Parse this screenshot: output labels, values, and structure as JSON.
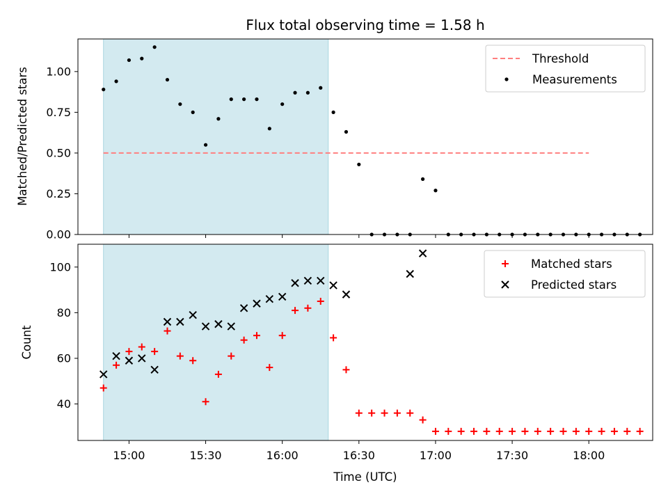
{
  "chart_data": {
    "title": "Flux total observing time = 1.58 h",
    "xlabel": "Time (UTC)",
    "x_ticks": [
      "15:00",
      "15:30",
      "16:00",
      "16:30",
      "17:00",
      "17:30",
      "18:00"
    ],
    "x_range": [
      "14:40",
      "18:25"
    ],
    "highlight_span": [
      "14:50",
      "16:18"
    ],
    "highlight_color": "#d3eaf0",
    "times": [
      "14:50",
      "14:55",
      "15:00",
      "15:05",
      "15:10",
      "15:15",
      "15:20",
      "15:25",
      "15:30",
      "15:35",
      "15:40",
      "15:45",
      "15:50",
      "15:55",
      "16:00",
      "16:05",
      "16:10",
      "16:15",
      "16:20",
      "16:25",
      "16:30",
      "16:35",
      "16:40",
      "16:45",
      "16:50",
      "16:55",
      "17:00",
      "17:05",
      "17:10",
      "17:15",
      "17:20",
      "17:25",
      "17:30",
      "17:35",
      "17:40",
      "17:45",
      "17:50",
      "17:55",
      "18:00",
      "18:05",
      "18:10",
      "18:15",
      "18:20"
    ],
    "panels": [
      {
        "type": "scatter",
        "ylabel": "Matched/Predicted stars",
        "ylim": [
          0,
          1.2
        ],
        "y_ticks": [
          "0.00",
          "0.25",
          "0.50",
          "0.75",
          "1.00"
        ],
        "legend_position": "top-right",
        "series": [
          {
            "name": "Threshold",
            "kind": "line",
            "style": "dashed",
            "color": "#ff7f7f",
            "x": [
              "14:50",
              "18:00"
            ],
            "y": [
              0.5,
              0.5
            ]
          },
          {
            "name": "Measurements",
            "kind": "scatter",
            "marker": "dot",
            "color": "#000000",
            "x": [
              "14:50",
              "14:55",
              "15:00",
              "15:05",
              "15:10",
              "15:15",
              "15:20",
              "15:25",
              "15:30",
              "15:35",
              "15:40",
              "15:45",
              "15:50",
              "15:55",
              "16:00",
              "16:05",
              "16:10",
              "16:15",
              "16:20",
              "16:25",
              "16:30",
              "16:35",
              "16:40",
              "16:45",
              "16:50",
              "16:55",
              "17:00",
              "17:05",
              "17:10",
              "17:15",
              "17:20",
              "17:25",
              "17:30",
              "17:35",
              "17:40",
              "17:45",
              "17:50",
              "17:55",
              "18:00",
              "18:05",
              "18:10",
              "18:15",
              "18:20"
            ],
            "y": [
              0.89,
              0.94,
              1.07,
              1.08,
              1.15,
              0.95,
              0.8,
              0.75,
              0.55,
              0.71,
              0.83,
              0.83,
              0.83,
              0.65,
              0.8,
              0.87,
              0.87,
              0.9,
              0.75,
              0.63,
              0.43,
              0.0,
              0.0,
              0.0,
              0.0,
              0.34,
              0.27,
              0.0,
              0.0,
              0.0,
              0.0,
              0.0,
              0.0,
              0.0,
              0.0,
              0.0,
              0.0,
              0.0,
              0.0,
              0.0,
              0.0,
              0.0,
              0.0
            ]
          }
        ]
      },
      {
        "type": "scatter",
        "ylabel": "Count",
        "ylim": [
          24,
          110
        ],
        "y_ticks": [
          "40",
          "60",
          "80",
          "100"
        ],
        "legend_position": "top-right",
        "series": [
          {
            "name": "Matched stars",
            "kind": "scatter",
            "marker": "plus",
            "color": "#ff0000",
            "x": [
              "14:50",
              "14:55",
              "15:00",
              "15:05",
              "15:10",
              "15:15",
              "15:20",
              "15:25",
              "15:30",
              "15:35",
              "15:40",
              "15:45",
              "15:50",
              "15:55",
              "16:00",
              "16:05",
              "16:10",
              "16:15",
              "16:20",
              "16:25",
              "16:30",
              "16:35",
              "16:40",
              "16:45",
              "16:50",
              "16:55",
              "17:00",
              "17:05",
              "17:10",
              "17:15",
              "17:20",
              "17:25",
              "17:30",
              "17:35",
              "17:40",
              "17:45",
              "17:50",
              "17:55",
              "18:00",
              "18:05",
              "18:10",
              "18:15",
              "18:20"
            ],
            "y": [
              47,
              57,
              63,
              65,
              63,
              72,
              61,
              59,
              41,
              53,
              61,
              68,
              70,
              56,
              70,
              81,
              82,
              85,
              69,
              55,
              36,
              36,
              36,
              36,
              36,
              33,
              28,
              28,
              28,
              28,
              28,
              28,
              28,
              28,
              28,
              28,
              28,
              28,
              28,
              28,
              28,
              28,
              28
            ]
          },
          {
            "name": "Predicted stars",
            "kind": "scatter",
            "marker": "cross",
            "color": "#000000",
            "x": [
              "14:50",
              "14:55",
              "15:00",
              "15:05",
              "15:10",
              "15:15",
              "15:20",
              "15:25",
              "15:30",
              "15:35",
              "15:40",
              "15:45",
              "15:50",
              "15:55",
              "16:00",
              "16:05",
              "16:10",
              "16:15",
              "16:20",
              "16:25",
              "16:50",
              "16:55"
            ],
            "y": [
              53,
              61,
              59,
              60,
              55,
              76,
              76,
              79,
              74,
              75,
              74,
              82,
              84,
              86,
              87,
              93,
              94,
              94,
              92,
              88,
              97,
              106
            ]
          }
        ]
      }
    ]
  }
}
